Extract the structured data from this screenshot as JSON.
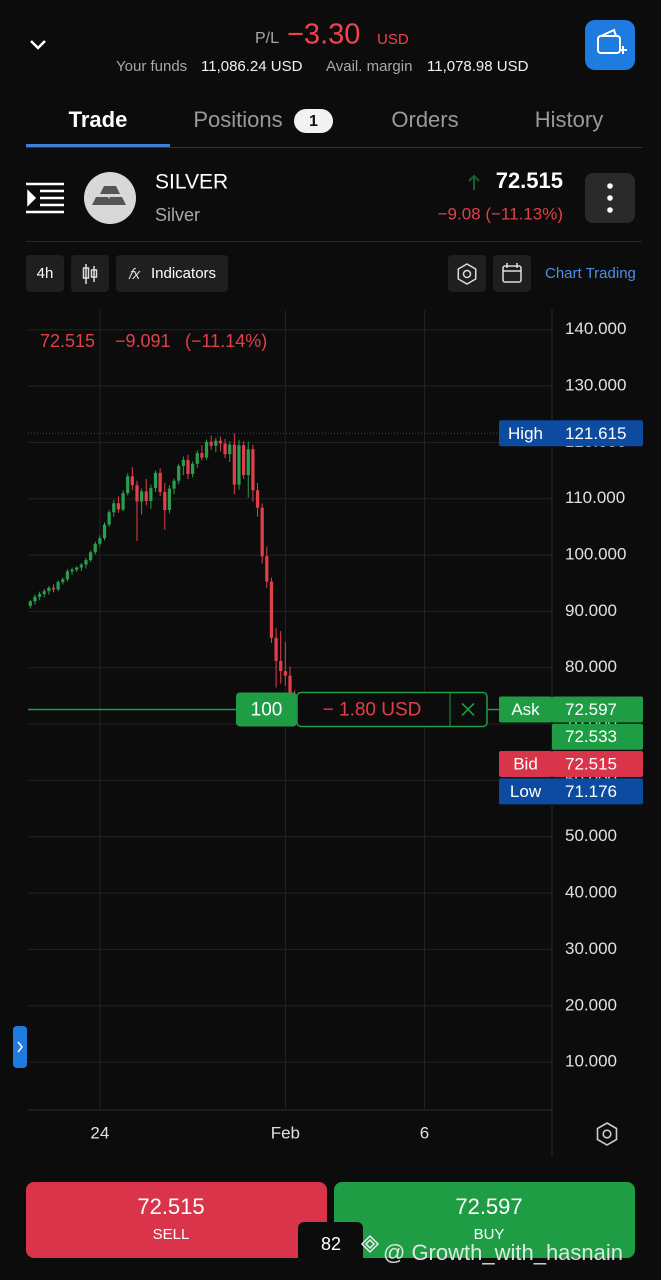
{
  "header": {
    "pl_label": "P/L",
    "pl_value": "−3.30",
    "pl_currency": "USD",
    "funds_label": "Your funds",
    "funds_value": "11,086.24 USD",
    "margin_label": "Avail. margin",
    "margin_value": "11,078.98 USD"
  },
  "tabs": [
    {
      "label": "Trade"
    },
    {
      "label": "Positions",
      "badge": "1"
    },
    {
      "label": "Orders"
    },
    {
      "label": "History"
    }
  ],
  "instrument": {
    "symbol": "SILVER",
    "name": "Silver",
    "price": "72.515",
    "change": "−9.08 (−11.13%)"
  },
  "toolbar": {
    "interval": "4h",
    "indicators": "Indicators",
    "chart_trading": "Chart Trading"
  },
  "chart_data": {
    "type": "candlestick",
    "legend_price": "72.515",
    "legend_change": "−9.091",
    "legend_percent": "(−11.14%)",
    "ylim": [
      1.5,
      143.5
    ],
    "yticks": [
      {
        "value": 140,
        "label": "140.000"
      },
      {
        "value": 130,
        "label": "130.000"
      },
      {
        "value": 120,
        "label": "120.000"
      },
      {
        "value": 110,
        "label": "110.000"
      },
      {
        "value": 100,
        "label": "100.000"
      },
      {
        "value": 90,
        "label": "90.000"
      },
      {
        "value": 80,
        "label": "80.000"
      },
      {
        "value": 70,
        "label": "70.000"
      },
      {
        "value": 60,
        "label": "60.000"
      },
      {
        "value": 50,
        "label": "50.000"
      },
      {
        "value": 40,
        "label": "40.000"
      },
      {
        "value": 30,
        "label": "30.000"
      },
      {
        "value": 20,
        "label": "20.000"
      },
      {
        "value": 10,
        "label": "10.000"
      }
    ],
    "xlim": [
      -0.5,
      112.5
    ],
    "xticks": [
      {
        "value": 15,
        "label": "24"
      },
      {
        "value": 55,
        "label": "Feb"
      },
      {
        "value": 85,
        "label": "6"
      }
    ],
    "grid": true,
    "up_color": "#2a9d4e",
    "down_color": "#e0404a",
    "x": [
      0,
      1,
      2,
      3,
      4,
      5,
      6,
      7,
      8,
      9,
      10,
      11,
      12,
      13,
      14,
      15,
      16,
      17,
      18,
      19,
      20,
      21,
      22,
      23,
      24,
      25,
      26,
      27,
      28,
      29,
      30,
      31,
      32,
      33,
      34,
      35,
      36,
      37,
      38,
      39,
      40,
      41,
      42,
      43,
      44,
      45,
      46,
      47,
      48,
      49,
      50,
      51,
      52,
      53,
      54,
      55,
      56,
      57
    ],
    "ohlc": [
      [
        91,
        92,
        90.5,
        91.8
      ],
      [
        91.8,
        93,
        91.2,
        92.6
      ],
      [
        92.6,
        93.5,
        92,
        93.1
      ],
      [
        93.1,
        94,
        92.5,
        93.6
      ],
      [
        93.6,
        94.5,
        93,
        94.2
      ],
      [
        94.2,
        94.8,
        93.4,
        93.9
      ],
      [
        93.9,
        95.5,
        93.6,
        95.2
      ],
      [
        95.2,
        96,
        94.8,
        95.7
      ],
      [
        95.7,
        97.5,
        95.3,
        97.1
      ],
      [
        97.1,
        97.8,
        96.5,
        97.4
      ],
      [
        97.4,
        98,
        97,
        97.8
      ],
      [
        97.8,
        98.6,
        97.2,
        98.3
      ],
      [
        98.3,
        99.5,
        97.6,
        99.1
      ],
      [
        99.1,
        100.8,
        98.8,
        100.5
      ],
      [
        100.5,
        102.4,
        100.1,
        102
      ],
      [
        102,
        103.5,
        101.5,
        103
      ],
      [
        103,
        105.8,
        102.6,
        105.4
      ],
      [
        105.4,
        108,
        105,
        107.6
      ],
      [
        107.6,
        109.8,
        106.8,
        109.2
      ],
      [
        109.2,
        110.4,
        107.5,
        108.1
      ],
      [
        108.1,
        111.5,
        107.8,
        111
      ],
      [
        111,
        114.5,
        110.6,
        114
      ],
      [
        114,
        115.6,
        111.5,
        112.4
      ],
      [
        112.4,
        113.2,
        102.5,
        109.5
      ],
      [
        109.5,
        111.8,
        107.2,
        111.3
      ],
      [
        111.3,
        113.5,
        108.8,
        109.6
      ],
      [
        109.6,
        112.5,
        108.2,
        111.9
      ],
      [
        111.9,
        115,
        111.2,
        114.6
      ],
      [
        114.6,
        115.4,
        110.5,
        111.2
      ],
      [
        111.2,
        112.8,
        104.5,
        108
      ],
      [
        108,
        112.4,
        107.4,
        111.8
      ],
      [
        111.8,
        113.6,
        110.8,
        113.2
      ],
      [
        113.2,
        116.2,
        112.6,
        115.8
      ],
      [
        115.8,
        117.5,
        114.2,
        116.9
      ],
      [
        116.9,
        117.8,
        113.5,
        114.4
      ],
      [
        114.4,
        116.6,
        113.8,
        116.2
      ],
      [
        116.2,
        118.6,
        115.5,
        118.1
      ],
      [
        118.1,
        119.5,
        116.8,
        117.3
      ],
      [
        117.3,
        120.5,
        116.9,
        120.1
      ],
      [
        120.1,
        121.2,
        118.7,
        119.4
      ],
      [
        119.4,
        120.8,
        118.2,
        120.3
      ],
      [
        120.3,
        121,
        118.4,
        119.8
      ],
      [
        119.8,
        120.6,
        117.2,
        117.9
      ],
      [
        117.9,
        120.2,
        116.5,
        119.6
      ],
      [
        119.6,
        121.615,
        110.8,
        112.5
      ],
      [
        112.5,
        120.4,
        111.6,
        119.5
      ],
      [
        119.5,
        120.2,
        113.5,
        114.2
      ],
      [
        114.2,
        120.1,
        110.2,
        118.8
      ],
      [
        118.8,
        119.6,
        109.5,
        111.5
      ],
      [
        111.5,
        112.8,
        106.8,
        108.4
      ],
      [
        108.4,
        109.2,
        98.5,
        99.8
      ],
      [
        99.8,
        101.5,
        94.2,
        95.3
      ],
      [
        95.3,
        96,
        84.4,
        85.3
      ],
      [
        85.3,
        87,
        76.5,
        81.2
      ],
      [
        81.2,
        86.5,
        77.2,
        79.4
      ],
      [
        79.4,
        84.6,
        76.8,
        78.6
      ],
      [
        78.6,
        80.2,
        74.1,
        75.2
      ],
      [
        75.2,
        76,
        71.176,
        72.515
      ]
    ],
    "markers": [
      {
        "label": "High",
        "value": 121.615,
        "color": "#0d4ba0"
      },
      {
        "label": "Ask",
        "value": 72.597,
        "color": "#1f9d45"
      },
      {
        "value": 72.533,
        "color": "#1f9d45"
      },
      {
        "label": "Bid",
        "value": 72.515,
        "color": "#d9344a"
      },
      {
        "label": "Low",
        "value": 71.176,
        "color": "#0d4ba0"
      }
    ],
    "position": {
      "quantity": "100",
      "pnl": "− 1.80 USD"
    }
  },
  "trade": {
    "sell_price": "72.515",
    "sell_label": "SELL",
    "buy_price": "72.597",
    "buy_label": "BUY",
    "spread": "82"
  },
  "watermark": "@ Growth_with_hasnain"
}
